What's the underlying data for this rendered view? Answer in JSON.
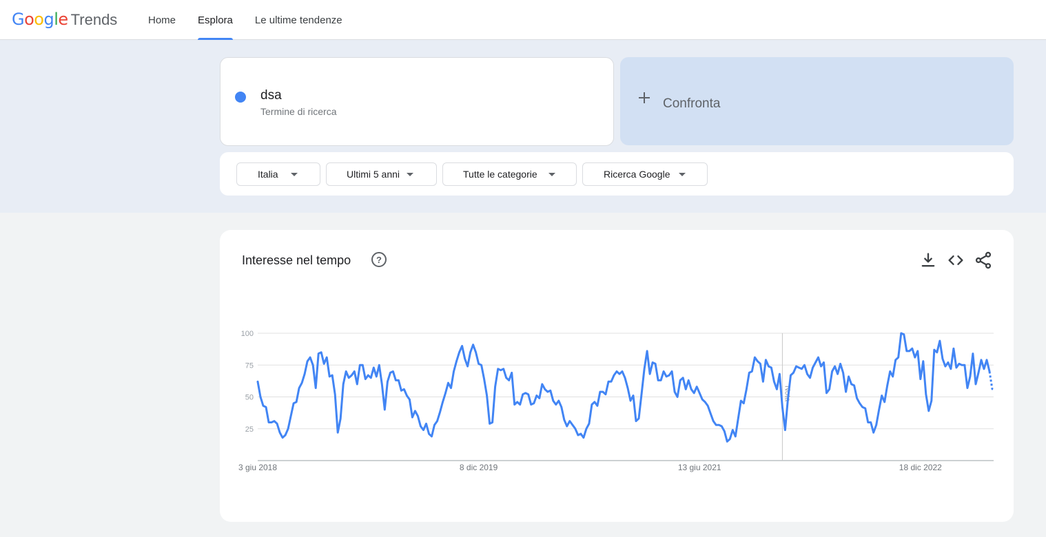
{
  "header": {
    "logo_google": "Google",
    "logo_trends": "Trends",
    "nav": [
      {
        "label": "Home",
        "active": false
      },
      {
        "label": "Esplora",
        "active": true
      },
      {
        "label": "Le ultime tendenze",
        "active": false
      }
    ]
  },
  "search": {
    "term": "dsa",
    "term_type": "Termine di ricerca",
    "term_color": "#4285f4",
    "compare_label": "Confronta"
  },
  "filters": {
    "region": "Italia",
    "period": "Ultimi 5 anni",
    "category": "Tutte le categorie",
    "source": "Ricerca Google"
  },
  "panel": {
    "title": "Interesse nel tempo",
    "icons": [
      "help-icon",
      "download-icon",
      "embed-icon",
      "share-icon"
    ]
  },
  "chart_data": {
    "type": "line",
    "ylim": [
      0,
      100
    ],
    "yticks": [
      25,
      50,
      75,
      100
    ],
    "xtick_labels": [
      "3 giu 2018",
      "8 dic 2019",
      "13 giu 2021",
      "18 dic 2022"
    ],
    "xtick_index": [
      0,
      80,
      160,
      240
    ],
    "note_label": "Nota",
    "note_index": 190,
    "grid": true,
    "series": [
      {
        "color": "#4285f4",
        "values": [
          62,
          50,
          43,
          42,
          30,
          30,
          31,
          29,
          22,
          18,
          20,
          25,
          35,
          45,
          46,
          57,
          61,
          68,
          78,
          81,
          75,
          57,
          84,
          85,
          76,
          81,
          66,
          67,
          52,
          22,
          33,
          60,
          70,
          65,
          67,
          70,
          60,
          75,
          75,
          64,
          67,
          65,
          73,
          66,
          75,
          60,
          40,
          62,
          69,
          70,
          63,
          63,
          55,
          56,
          51,
          48,
          34,
          39,
          35,
          27,
          24,
          29,
          21,
          19,
          28,
          31,
          38,
          46,
          53,
          61,
          57,
          70,
          78,
          85,
          90,
          80,
          74,
          85,
          91,
          85,
          76,
          75,
          64,
          51,
          29,
          30,
          58,
          72,
          71,
          72,
          65,
          63,
          69,
          44,
          46,
          44,
          52,
          53,
          52,
          44,
          45,
          51,
          49,
          60,
          56,
          54,
          55,
          47,
          44,
          47,
          42,
          32,
          27,
          31,
          28,
          25,
          20,
          21,
          18,
          25,
          29,
          44,
          46,
          43,
          54,
          54,
          52,
          62,
          62,
          67,
          70,
          68,
          70,
          65,
          57,
          47,
          51,
          31,
          33,
          52,
          72,
          86,
          68,
          77,
          76,
          63,
          63,
          70,
          66,
          67,
          70,
          54,
          50,
          63,
          65,
          56,
          63,
          56,
          53,
          58,
          53,
          48,
          46,
          43,
          37,
          31,
          28,
          28,
          27,
          23,
          15,
          17,
          24,
          19,
          33,
          47,
          45,
          56,
          69,
          70,
          81,
          78,
          76,
          62,
          79,
          74,
          73,
          62,
          56,
          68,
          42,
          24,
          48,
          67,
          69,
          74,
          73,
          72,
          75,
          68,
          65,
          73,
          77,
          81,
          74,
          77,
          53,
          56,
          70,
          74,
          68,
          76,
          69,
          54,
          66,
          60,
          59,
          49,
          45,
          42,
          41,
          30,
          30,
          22,
          28,
          40,
          51,
          46,
          59,
          70,
          66,
          79,
          81,
          100,
          99,
          86,
          86,
          88,
          81,
          86,
          64,
          78,
          52,
          39,
          47,
          87,
          85,
          94,
          80,
          74,
          77,
          72,
          88,
          73,
          76,
          75,
          75,
          57,
          66,
          84,
          60,
          69,
          79,
          72,
          79,
          70,
          56
        ]
      }
    ]
  }
}
